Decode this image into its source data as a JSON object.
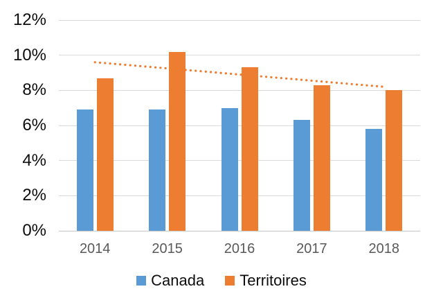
{
  "chart_data": {
    "type": "bar",
    "title": "",
    "categories": [
      "2014",
      "2015",
      "2016",
      "2017",
      "2018"
    ],
    "series": [
      {
        "name": "Canada",
        "color": "#5B9BD5",
        "values": [
          6.9,
          6.9,
          7.0,
          6.3,
          5.8
        ]
      },
      {
        "name": "Territoires",
        "color": "#ED7D31",
        "values": [
          8.7,
          10.2,
          9.3,
          8.3,
          8.0
        ]
      }
    ],
    "trendline": {
      "for_series": "Territoires",
      "style": "dotted",
      "color": "#ED7D31",
      "start_value": 9.6,
      "end_value": 8.2
    },
    "y_axis": {
      "min": 0,
      "max": 12,
      "step": 2,
      "tick_labels": [
        "0%",
        "2%",
        "4%",
        "6%",
        "8%",
        "10%",
        "12%"
      ],
      "label_color": "#0d0d0d"
    },
    "x_axis": {
      "label_color": "#595959"
    },
    "legend": {
      "position": "bottom",
      "entries": [
        "Canada",
        "Territoires"
      ]
    },
    "grid": true,
    "gridline_color": "#D9D9D9",
    "axis_line_color": "#C6C6C6",
    "background": "#FFFFFF"
  }
}
